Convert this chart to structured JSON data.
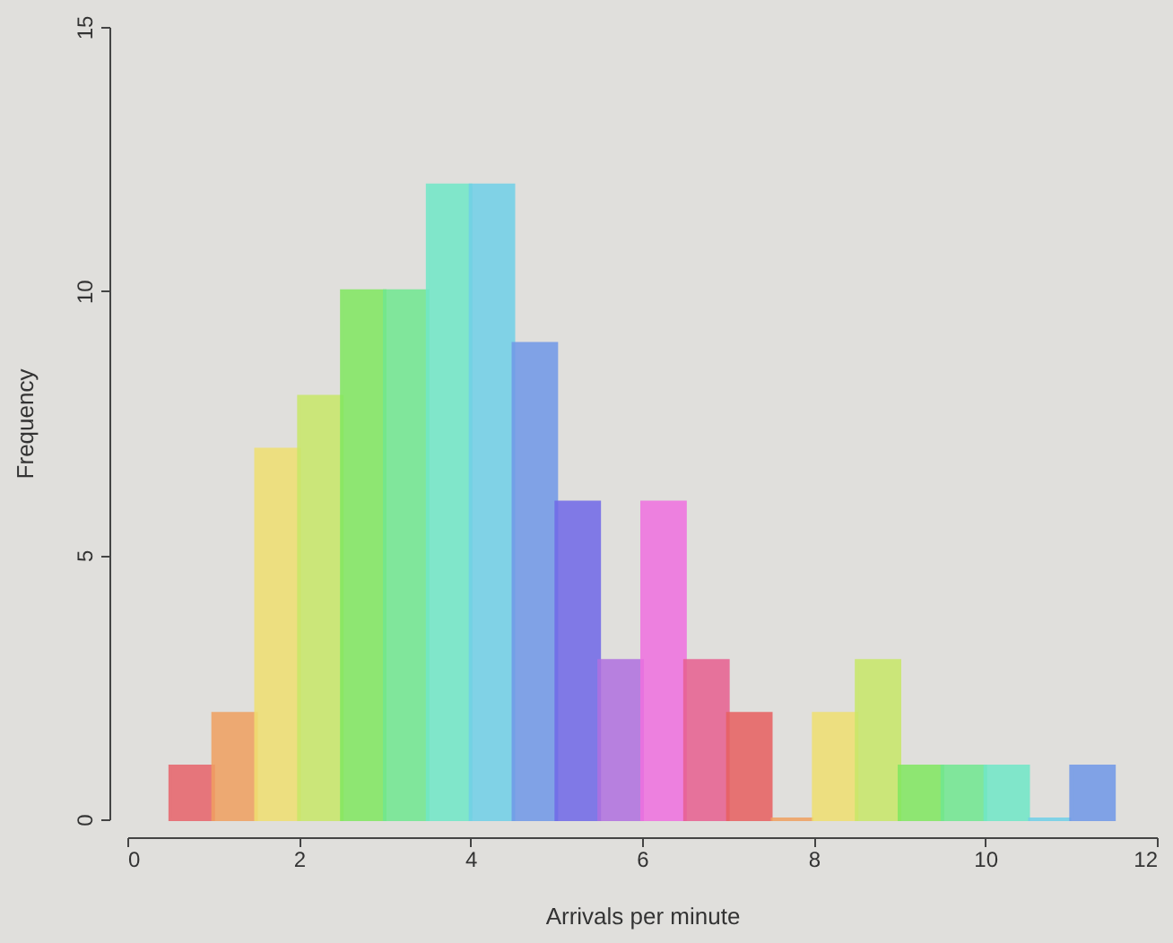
{
  "chart_data": {
    "type": "histogram",
    "xlabel": "Arrivals per minute",
    "ylabel": "Frequency",
    "bins": [
      0.5,
      1,
      1.5,
      2,
      2.5,
      3,
      3.5,
      4,
      4.5,
      5,
      5.5,
      6,
      6.5,
      7,
      7.5,
      8,
      8.5,
      9,
      9.5,
      10,
      10.5,
      11,
      11.5
    ],
    "values": [
      1,
      2,
      7,
      8,
      10,
      10,
      12,
      12,
      9,
      6,
      3,
      6,
      3,
      2,
      0,
      2,
      3,
      1,
      1,
      1,
      0,
      1
    ],
    "colors": [
      "#e8636b",
      "#f0a060",
      "#f0e070",
      "#c8e868",
      "#80e860",
      "#70e890",
      "#70e8c8",
      "#70d0e8",
      "#7098e8",
      "#7068e8",
      "#b070e0",
      "#f070e0",
      "#e86090",
      "#e86060",
      "#f0a060",
      "#f0e070",
      "#c8e868",
      "#80e860",
      "#70e890",
      "#70e8c8",
      "#70d0e8",
      "#7098e8"
    ],
    "xlim": [
      0,
      12
    ],
    "xticks": [
      0,
      2,
      4,
      6,
      8,
      10,
      12
    ],
    "ylim": [
      0,
      15
    ],
    "yticks": [
      0,
      5,
      10,
      15
    ]
  }
}
